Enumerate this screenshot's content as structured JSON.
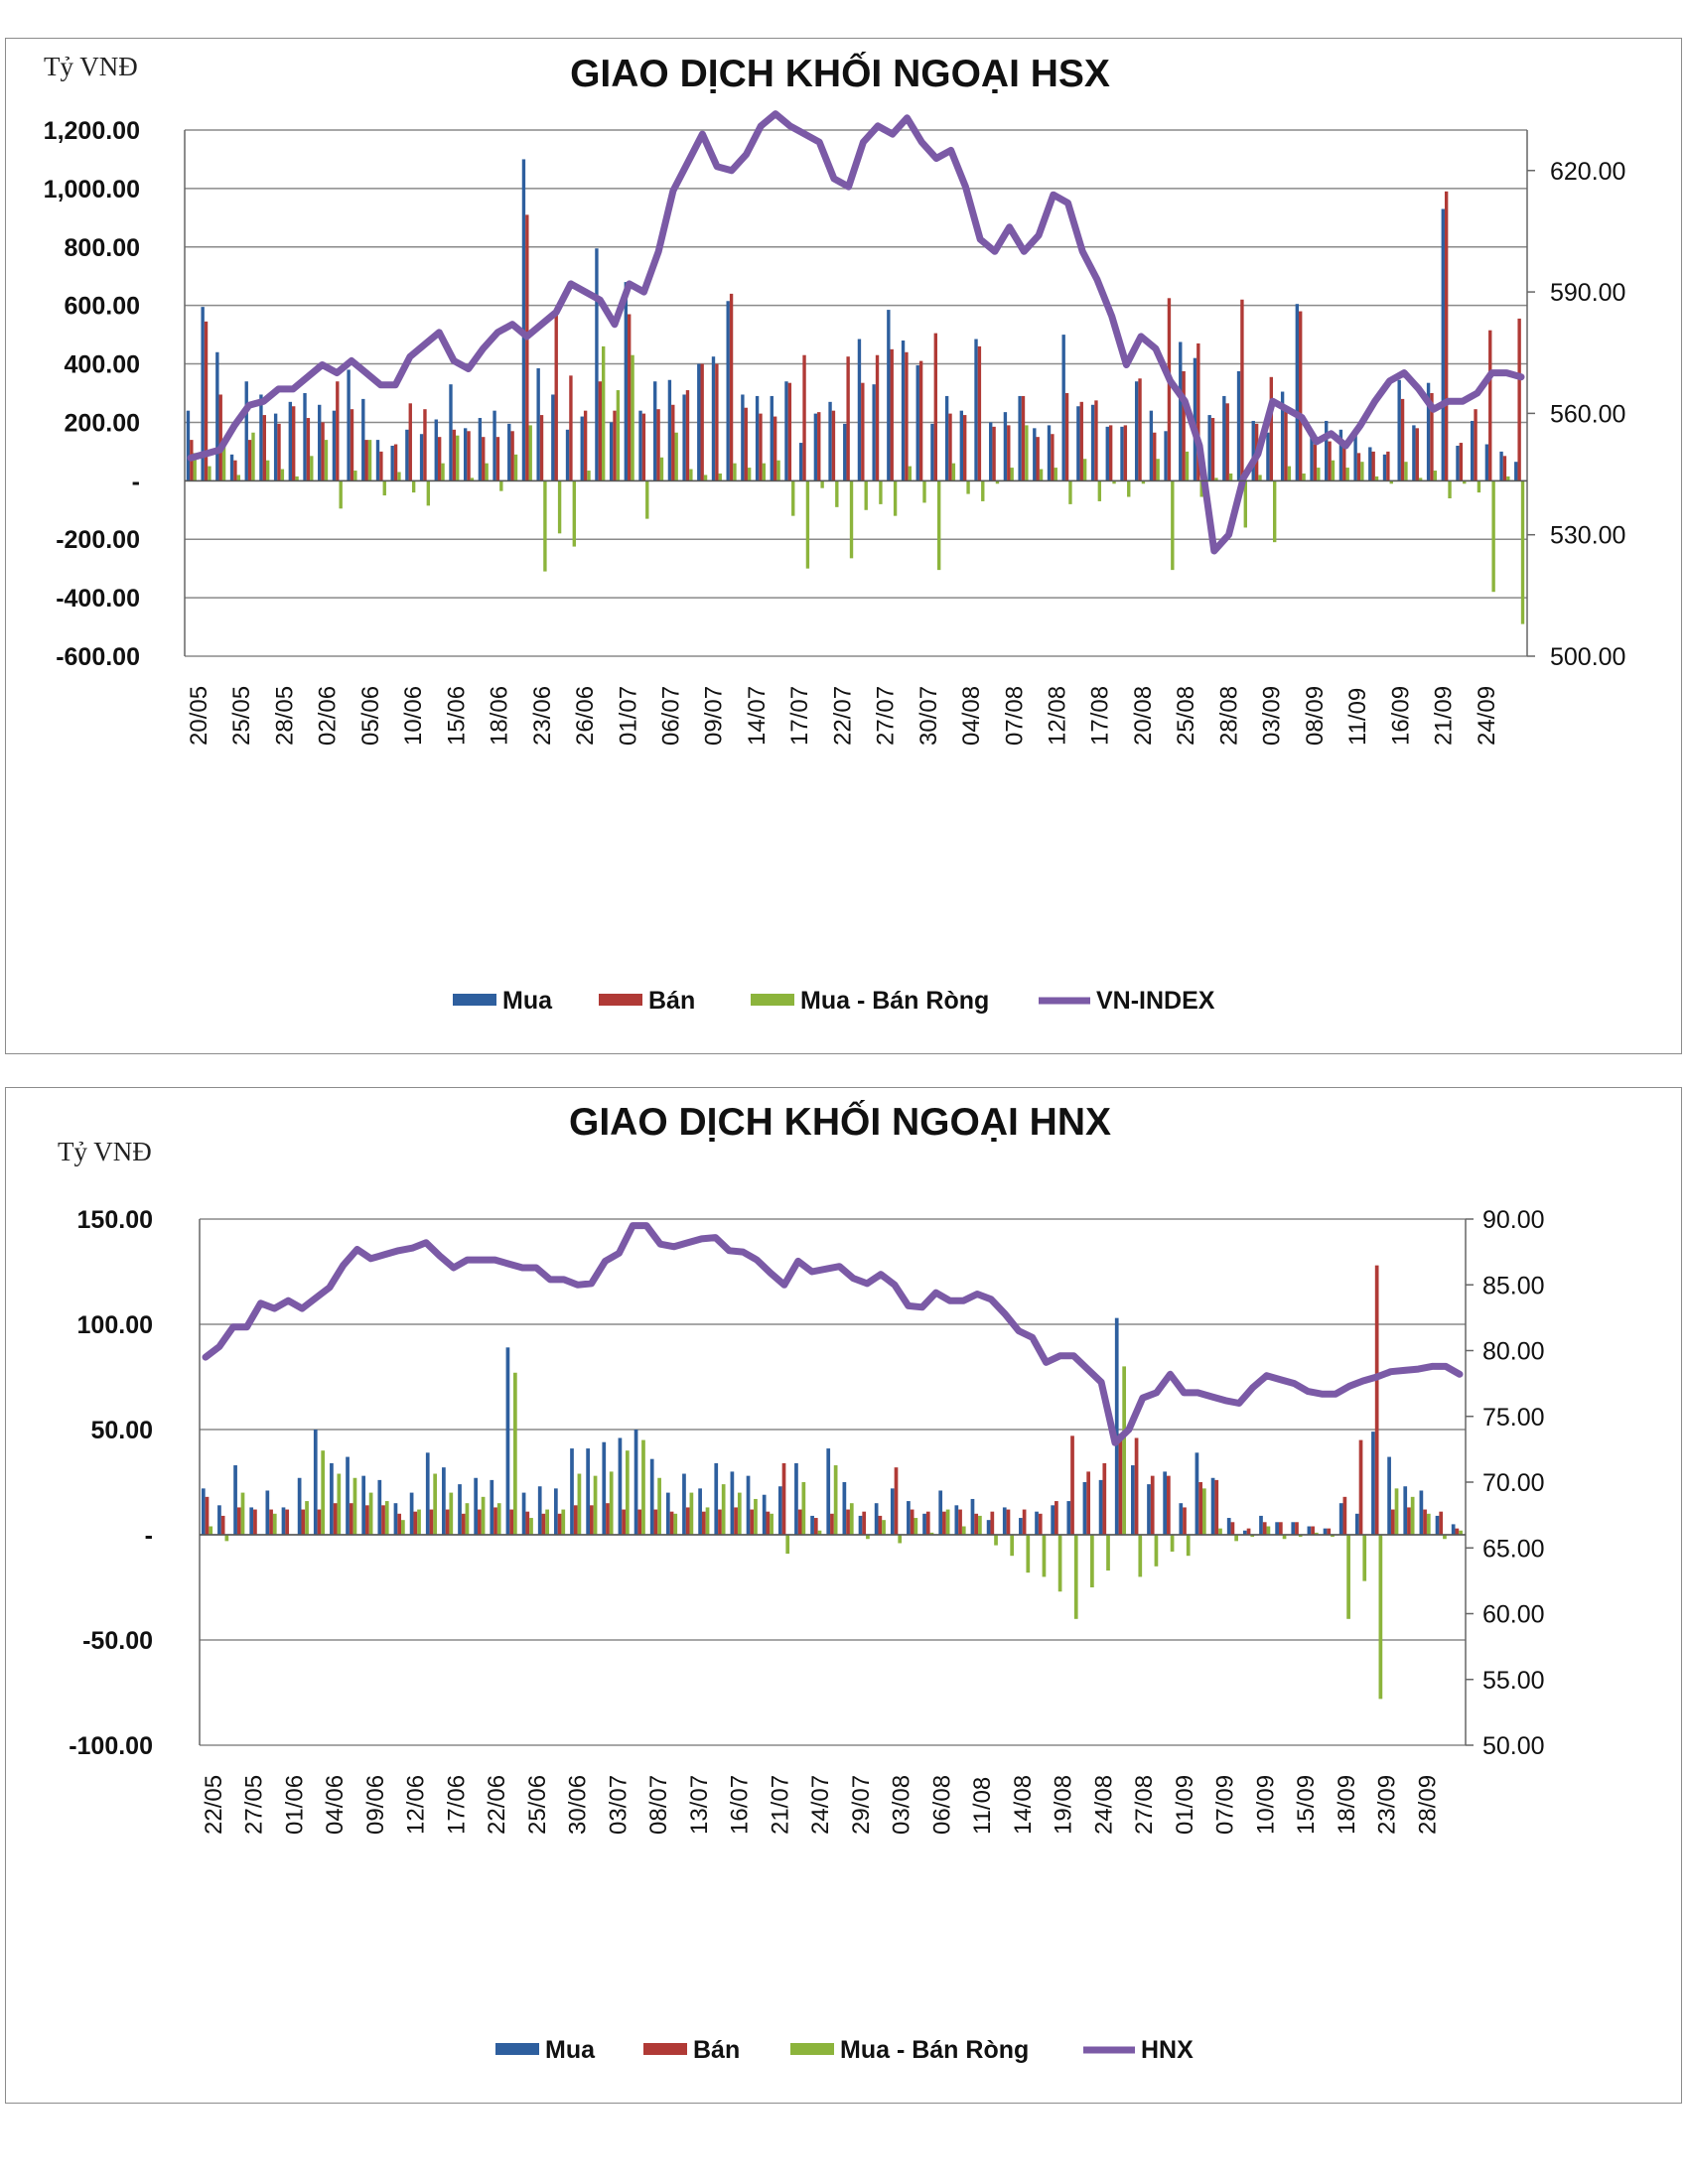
{
  "chart_data": [
    {
      "type": "bar",
      "title": "GIAO DỊCH KHỐI NGOẠI HSX",
      "unit_label": "Tỷ VNĐ",
      "ylim": [
        -600,
        1200
      ],
      "y_ticks": [
        "1,200.00",
        "1,000.00",
        "800.00",
        "600.00",
        "400.00",
        "200.00",
        "-",
        "-200.00",
        "-400.00",
        "-600.00"
      ],
      "y2lim": [
        500,
        630
      ],
      "y2_ticks": [
        "620.00",
        "590.00",
        "560.00",
        "530.00",
        "500.00"
      ],
      "tick_labels": [
        "20/05",
        "25/05",
        "28/05",
        "02/06",
        "05/06",
        "10/06",
        "15/06",
        "18/06",
        "23/06",
        "26/06",
        "01/07",
        "06/07",
        "09/07",
        "14/07",
        "17/07",
        "22/07",
        "27/07",
        "30/07",
        "04/08",
        "07/08",
        "12/08",
        "17/08",
        "20/08",
        "25/08",
        "28/08",
        "03/09",
        "08/09",
        "11/09",
        "16/09",
        "21/09",
        "24/09"
      ],
      "grid": true,
      "legend_position": "bottom",
      "series": [
        {
          "name": "Mua",
          "color": "#2e5f9e",
          "values": [
            240,
            595,
            440,
            90,
            340,
            295,
            230,
            270,
            300,
            260,
            240,
            380,
            280,
            140,
            120,
            175,
            160,
            210,
            330,
            180,
            215,
            240,
            195,
            1100,
            385,
            295,
            175,
            220,
            795,
            200,
            680,
            240,
            340,
            345,
            295,
            400,
            425,
            615,
            295,
            290,
            290,
            340,
            130,
            230,
            270,
            195,
            485,
            330,
            585,
            480,
            395,
            195,
            290,
            240,
            485,
            200,
            235,
            290,
            180,
            190,
            500,
            255,
            260,
            185,
            185,
            340,
            240,
            170,
            475,
            420,
            225,
            290,
            375,
            205,
            165,
            305,
            605,
            170,
            205,
            175,
            160,
            115,
            90,
            345,
            190,
            335,
            930,
            120,
            205,
            125,
            100,
            65
          ]
        },
        {
          "name": "Bán",
          "color": "#b03a36",
          "values": [
            140,
            545,
            295,
            70,
            140,
            225,
            195,
            255,
            215,
            200,
            340,
            245,
            140,
            100,
            125,
            265,
            245,
            150,
            175,
            170,
            150,
            150,
            170,
            910,
            225,
            580,
            360,
            240,
            340,
            240,
            570,
            230,
            245,
            260,
            310,
            400,
            400,
            640,
            250,
            230,
            220,
            335,
            430,
            235,
            240,
            425,
            335,
            430,
            450,
            440,
            410,
            505,
            230,
            225,
            460,
            185,
            190,
            290,
            150,
            160,
            300,
            270,
            275,
            190,
            190,
            350,
            165,
            625,
            375,
            470,
            215,
            265,
            620,
            195,
            355,
            255,
            580,
            125,
            135,
            130,
            95,
            100,
            100,
            280,
            180,
            300,
            990,
            130,
            245,
            515,
            85,
            555
          ]
        },
        {
          "name": "Mua - Bán Ròng",
          "color": "#8cb43c",
          "values": [
            95,
            50,
            145,
            20,
            165,
            70,
            40,
            15,
            85,
            140,
            -95,
            35,
            140,
            -50,
            30,
            -40,
            -85,
            60,
            155,
            10,
            60,
            -35,
            90,
            190,
            -310,
            -180,
            -225,
            35,
            460,
            310,
            430,
            -130,
            80,
            165,
            40,
            20,
            25,
            60,
            45,
            60,
            70,
            -120,
            -300,
            -25,
            -90,
            -265,
            -100,
            -80,
            -120,
            50,
            -75,
            -305,
            60,
            -45,
            -70,
            -10,
            45,
            190,
            40,
            45,
            -80,
            75,
            -70,
            -10,
            -55,
            -10,
            75,
            -305,
            100,
            -55,
            10,
            25,
            -160,
            20,
            -210,
            50,
            25,
            45,
            70,
            45,
            65,
            15,
            -10,
            65,
            10,
            35,
            -60,
            -10,
            -40,
            -380,
            15,
            -490
          ]
        }
      ],
      "line": {
        "name": "VN-INDEX",
        "color": "#7b5aa6",
        "values": [
          549,
          550,
          551,
          557,
          562,
          563,
          566,
          566,
          569,
          572,
          570,
          573,
          570,
          567,
          567,
          574,
          577,
          580,
          573,
          571,
          576,
          580,
          582,
          579,
          582,
          585,
          592,
          590,
          588,
          582,
          592,
          590,
          600,
          615,
          622,
          629,
          621,
          620,
          624,
          631,
          634,
          631,
          629,
          627,
          618,
          616,
          627,
          631,
          629,
          633,
          627,
          623,
          625,
          616,
          603,
          600,
          606,
          600,
          604,
          614,
          612,
          600,
          593,
          584,
          572,
          579,
          576,
          568,
          563,
          552,
          526,
          530,
          544,
          550,
          563,
          561,
          559,
          553,
          555,
          552,
          557,
          563,
          568,
          570,
          566,
          561,
          563,
          563,
          565,
          570,
          570,
          569
        ]
      }
    },
    {
      "type": "bar",
      "title": "GIAO DỊCH KHỐI NGOẠI HNX",
      "unit_label": "Tỷ VNĐ",
      "ylim": [
        -100,
        150
      ],
      "y_ticks": [
        "150.00",
        "100.00",
        "50.00",
        "-",
        "-50.00",
        "-100.00"
      ],
      "y2lim": [
        50,
        90
      ],
      "y2_ticks": [
        "90.00",
        "85.00",
        "80.00",
        "75.00",
        "70.00",
        "65.00",
        "60.00",
        "55.00",
        "50.00"
      ],
      "tick_labels": [
        "22/05",
        "27/05",
        "01/06",
        "04/06",
        "09/06",
        "12/06",
        "17/06",
        "22/06",
        "25/06",
        "30/06",
        "03/07",
        "08/07",
        "13/07",
        "16/07",
        "21/07",
        "24/07",
        "29/07",
        "03/08",
        "06/08",
        "11/08",
        "14/08",
        "19/08",
        "24/08",
        "27/08",
        "01/09",
        "07/09",
        "10/09",
        "15/09",
        "18/09",
        "23/09",
        "28/09"
      ],
      "grid": true,
      "legend_position": "bottom",
      "series": [
        {
          "name": "Mua",
          "color": "#2e5f9e",
          "values": [
            22,
            14,
            33,
            13,
            21,
            13,
            27,
            50,
            34,
            37,
            28,
            26,
            15,
            20,
            39,
            32,
            24,
            27,
            26,
            89,
            20,
            23,
            22,
            41,
            41,
            44,
            46,
            50,
            36,
            20,
            29,
            22,
            34,
            30,
            28,
            19,
            23,
            34,
            9,
            41,
            25,
            9,
            15,
            22,
            16,
            10,
            21,
            14,
            17,
            7,
            13,
            8,
            11,
            14,
            16,
            25,
            26,
            103,
            33,
            24,
            30,
            15,
            39,
            27,
            8,
            2,
            9,
            6,
            6,
            4,
            3,
            15,
            10,
            49,
            37,
            23,
            21,
            9,
            5
          ]
        },
        {
          "name": "Bán",
          "color": "#b03a36",
          "values": [
            18,
            9,
            13,
            12,
            12,
            12,
            12,
            12,
            15,
            15,
            14,
            14,
            10,
            11,
            12,
            12,
            10,
            12,
            13,
            12,
            11,
            10,
            10,
            14,
            14,
            15,
            12,
            12,
            12,
            11,
            13,
            11,
            12,
            13,
            12,
            11,
            34,
            12,
            8,
            10,
            12,
            11,
            9,
            32,
            12,
            11,
            11,
            12,
            10,
            11,
            12,
            12,
            10,
            16,
            47,
            30,
            34,
            48,
            46,
            28,
            28,
            13,
            25,
            26,
            6,
            3,
            6,
            6,
            6,
            4,
            3,
            18,
            45,
            128,
            12,
            13,
            12,
            11,
            3
          ]
        },
        {
          "name": "Mua - Bán Ròng",
          "color": "#8cb43c",
          "values": [
            4,
            -3,
            20,
            0,
            10,
            0,
            16,
            40,
            29,
            27,
            20,
            16,
            7,
            12,
            29,
            20,
            15,
            18,
            15,
            77,
            8,
            12,
            12,
            29,
            28,
            30,
            40,
            45,
            27,
            10,
            20,
            13,
            24,
            20,
            17,
            10,
            -9,
            25,
            2,
            33,
            15,
            -2,
            7,
            -4,
            8,
            1,
            12,
            4,
            9,
            -5,
            -10,
            -18,
            -20,
            -27,
            -40,
            -25,
            -17,
            80,
            -20,
            -15,
            -8,
            -10,
            22,
            3,
            -3,
            -1,
            4,
            -2,
            -1,
            1,
            -1,
            -40,
            -22,
            -78,
            22,
            18,
            10,
            -2,
            2
          ]
        }
      ],
      "line": {
        "name": "HNX",
        "color": "#7b5aa6",
        "values": [
          79.5,
          80.3,
          81.8,
          81.8,
          83.6,
          83.2,
          83.8,
          83.2,
          84.0,
          84.8,
          86.5,
          87.7,
          87.0,
          87.3,
          87.6,
          87.8,
          88.2,
          87.2,
          86.3,
          86.9,
          86.9,
          86.9,
          86.6,
          86.3,
          86.3,
          85.4,
          85.4,
          85.0,
          85.1,
          86.8,
          87.4,
          89.5,
          89.5,
          88.1,
          87.9,
          88.2,
          88.5,
          88.6,
          87.6,
          87.5,
          86.9,
          85.9,
          85.0,
          86.8,
          86.0,
          86.2,
          86.4,
          85.5,
          85.1,
          85.8,
          85.0,
          83.4,
          83.3,
          84.4,
          83.8,
          83.8,
          84.3,
          83.9,
          82.8,
          81.5,
          81.0,
          79.1,
          79.6,
          79.6,
          78.6,
          77.6,
          73.0,
          74.0,
          76.4,
          76.8,
          78.2,
          76.8,
          76.8,
          76.5,
          76.2,
          76.0,
          77.2,
          78.1,
          77.8,
          77.5,
          76.9,
          76.7,
          76.7,
          77.3,
          77.7,
          78.0,
          78.4,
          78.5,
          78.6,
          78.8,
          78.8,
          78.2
        ]
      }
    }
  ]
}
